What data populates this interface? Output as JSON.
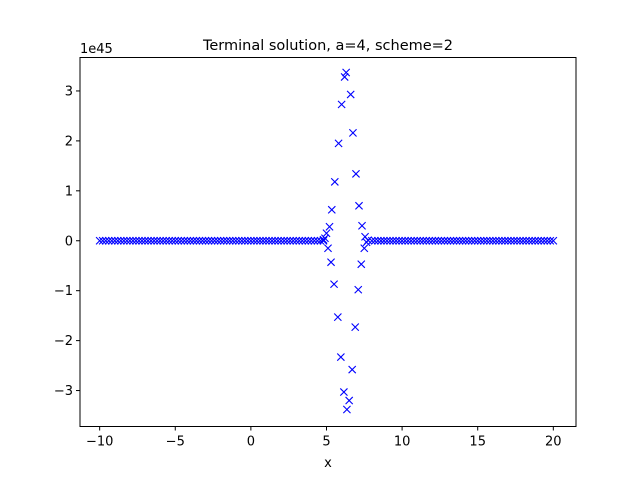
{
  "chart_data": {
    "type": "scatter",
    "title": "Terminal solution, a=4, scheme=2",
    "xlabel": "x",
    "ylabel": "",
    "y_offset_label": "1e45",
    "y_scale": 1e+45,
    "xlim": [
      -11.3,
      21.5
    ],
    "ylim": [
      -3.72,
      3.67
    ],
    "x_ticks": [
      -10,
      -5,
      0,
      5,
      10,
      15,
      20
    ],
    "y_ticks": [
      -3,
      -2,
      -1,
      0,
      1,
      2,
      3
    ],
    "marker": "x",
    "marker_color": "#0000ff",
    "flat_series": {
      "name": "near-zero values",
      "x_start": -10,
      "x_end": 20,
      "step": 0.2,
      "exclude_range": [
        4.8,
        7.9
      ],
      "y": 0
    },
    "series": [
      {
        "name": "solution",
        "points": [
          [
            4.8,
            0.02
          ],
          [
            4.9,
            0.05
          ],
          [
            5.0,
            0.15
          ],
          [
            5.1,
            -0.15
          ],
          [
            5.2,
            0.28
          ],
          [
            5.3,
            -0.43
          ],
          [
            5.35,
            0.62
          ],
          [
            5.5,
            -0.87
          ],
          [
            5.55,
            1.18
          ],
          [
            5.75,
            -1.53
          ],
          [
            5.8,
            1.95
          ],
          [
            5.95,
            -2.33
          ],
          [
            6.0,
            2.73
          ],
          [
            6.15,
            -3.03
          ],
          [
            6.2,
            3.28
          ],
          [
            6.35,
            -3.38
          ],
          [
            6.3,
            3.37
          ],
          [
            6.5,
            -3.2
          ],
          [
            6.6,
            2.93
          ],
          [
            6.7,
            -2.58
          ],
          [
            6.75,
            2.16
          ],
          [
            6.9,
            -1.73
          ],
          [
            6.95,
            1.34
          ],
          [
            7.1,
            -0.98
          ],
          [
            7.15,
            0.7
          ],
          [
            7.3,
            -0.47
          ],
          [
            7.35,
            0.3
          ],
          [
            7.5,
            -0.15
          ],
          [
            7.55,
            0.08
          ],
          [
            7.65,
            -0.03
          ],
          [
            7.75,
            0.01
          ]
        ]
      }
    ]
  }
}
